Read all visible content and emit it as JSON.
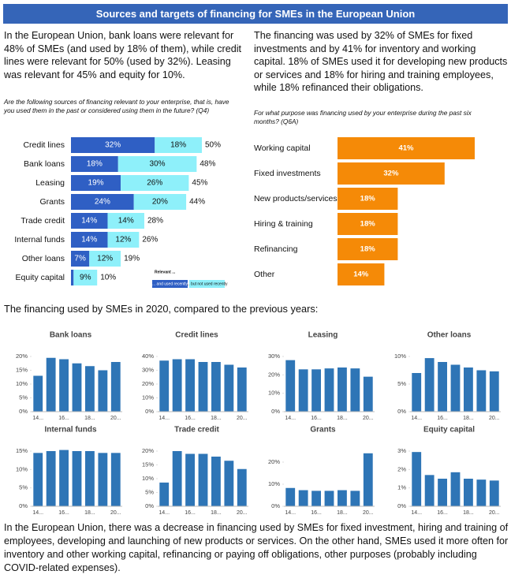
{
  "title": "Sources and targets of financing for SMEs in the European Union",
  "intro_left": "In the European Union, bank loans were relevant for 48% of SMEs (and used by 18% of them), while credit lines were relevant for 50% (used by 32%). Leasing was relevant for 45% and equity for 10%.",
  "intro_right": "The financing was used by 32% of SMEs for fixed investments and by 41% for inventory and working capital. 18% of SMEs used it for developing new products or services and 18% for hiring and training employees, while 18% refinanced their obligations.",
  "section_heading": "The financing used by SMEs in 2020, compared to the previous years:",
  "conclusion": "In the European Union, there was a decrease in financing used by SMEs for fixed investment, hiring and training of employees, developing and launching of new products or services. On the other hand, SMEs used it more often for inventory and other working capital, refinancing or paying off obligations, other purposes (probably including COVID-related expenses).",
  "chart_data": [
    {
      "type": "stacked_bar_h",
      "subtitle": "Are the following sources of financing relevant to your enterprise, that is, have you used them in the past or considered using them in the future? (Q4)",
      "categories": [
        "Credit lines",
        "Bank loans",
        "Leasing",
        "Grants",
        "Trade credit",
        "Internal funds",
        "Other loans",
        "Equity capital"
      ],
      "legend_title": "Relevant ...",
      "series": [
        {
          "name": "... and used recently",
          "color": "#2f5fc4",
          "values": [
            32,
            18,
            19,
            24,
            14,
            14,
            7,
            1
          ],
          "value_labels": [
            "32%",
            "18%",
            "19%",
            "24%",
            "14%",
            "14%",
            "7%",
            null
          ]
        },
        {
          "name": "... but not used recently",
          "color": "#8ef0fa",
          "values": [
            18,
            30,
            26,
            20,
            14,
            12,
            12,
            9
          ],
          "value_labels": [
            "18%",
            "30%",
            "26%",
            "20%",
            "14%",
            "12%",
            "12%",
            "9%"
          ]
        }
      ],
      "total_labels": [
        "50%",
        "48%",
        "45%",
        "44%",
        "28%",
        "26%",
        "19%",
        "10%"
      ]
    },
    {
      "type": "bar_h",
      "subtitle": "For what purpose was financing used by your enterprise during the past six months? (Q6A)",
      "categories": [
        "Working capital",
        "Fixed investments",
        "New products/services",
        "Hiring & training",
        "Refinancing",
        "Other"
      ],
      "values": [
        41,
        32,
        18,
        18,
        18,
        14
      ],
      "value_labels": [
        "41%",
        "32%",
        "18%",
        "18%",
        "18%",
        "14%"
      ],
      "color": "#f58a07"
    },
    {
      "type": "bar",
      "title": "Bank loans",
      "categories": [
        "14...",
        null,
        "16...",
        null,
        "18...",
        null,
        "20..."
      ],
      "values": [
        13,
        19.5,
        19,
        17.5,
        16.5,
        15,
        18
      ],
      "color": "#2e75b6",
      "ylim": [
        0,
        20
      ],
      "yticks": [
        {
          "value": 0,
          "label": "0%"
        },
        {
          "value": 5,
          "label": "5%"
        },
        {
          "value": 10,
          "label": "10%"
        },
        {
          "value": 15,
          "label": "15%"
        },
        {
          "value": 20,
          "label": "20%"
        }
      ]
    },
    {
      "type": "bar",
      "title": "Credit lines",
      "categories": [
        "14...",
        null,
        "16...",
        null,
        "18...",
        null,
        "20..."
      ],
      "values": [
        37,
        38,
        38,
        36,
        36,
        34,
        32
      ],
      "color": "#2e75b6",
      "ylim": [
        0,
        40
      ],
      "yticks": [
        {
          "value": 0,
          "label": "0%"
        },
        {
          "value": 10,
          "label": "10%"
        },
        {
          "value": 20,
          "label": "20%"
        },
        {
          "value": 30,
          "label": "30%"
        },
        {
          "value": 40,
          "label": "40%"
        }
      ]
    },
    {
      "type": "bar",
      "title": "Leasing",
      "categories": [
        "14...",
        null,
        "16...",
        null,
        "18...",
        null,
        "20..."
      ],
      "values": [
        28,
        23,
        23,
        23.5,
        24,
        23.5,
        19
      ],
      "color": "#2e75b6",
      "ylim": [
        0,
        30
      ],
      "yticks": [
        {
          "value": 0,
          "label": "0%"
        },
        {
          "value": 10,
          "label": "10%"
        },
        {
          "value": 20,
          "label": "20%"
        },
        {
          "value": 30,
          "label": "30%"
        }
      ]
    },
    {
      "type": "bar",
      "title": "Other loans",
      "categories": [
        "14...",
        null,
        "16...",
        null,
        "18...",
        null,
        "20..."
      ],
      "values": [
        7,
        9.7,
        9,
        8.5,
        8,
        7.5,
        7.3
      ],
      "color": "#2e75b6",
      "ylim": [
        0,
        10
      ],
      "yticks": [
        {
          "value": 0,
          "label": "0%"
        },
        {
          "value": 5,
          "label": "5%"
        },
        {
          "value": 10,
          "label": "10%"
        }
      ]
    },
    {
      "type": "bar",
      "title": "Internal funds",
      "categories": [
        "14...",
        null,
        "16...",
        null,
        "18...",
        null,
        "20..."
      ],
      "values": [
        14.5,
        15,
        15.3,
        15,
        15,
        14.5,
        14.5
      ],
      "color": "#2e75b6",
      "ylim": [
        0,
        15
      ],
      "yticks": [
        {
          "value": 0,
          "label": "0%"
        },
        {
          "value": 5,
          "label": "5%"
        },
        {
          "value": 10,
          "label": "10%"
        },
        {
          "value": 15,
          "label": "15%"
        }
      ]
    },
    {
      "type": "bar",
      "title": "Trade credit",
      "categories": [
        "14...",
        null,
        "16...",
        null,
        "18...",
        null,
        "20..."
      ],
      "values": [
        8.6,
        20,
        19,
        19,
        18,
        16.5,
        13.5
      ],
      "color": "#2e75b6",
      "ylim": [
        0,
        20
      ],
      "yticks": [
        {
          "value": 0,
          "label": "0%"
        },
        {
          "value": 5,
          "label": "5%"
        },
        {
          "value": 10,
          "label": "10%"
        },
        {
          "value": 15,
          "label": "15%"
        },
        {
          "value": 20,
          "label": "20%"
        }
      ]
    },
    {
      "type": "bar",
      "title": "Grants",
      "categories": [
        "14...",
        null,
        "16...",
        null,
        "18...",
        null,
        "20..."
      ],
      "values": [
        8.3,
        7.3,
        7,
        7,
        7.3,
        7,
        24
      ],
      "color": "#2e75b6",
      "ylim": [
        0,
        25
      ],
      "yticks": [
        {
          "value": 0,
          "label": "0%"
        },
        {
          "value": 10,
          "label": "10%"
        },
        {
          "value": 20,
          "label": "20%"
        }
      ]
    },
    {
      "type": "bar",
      "title": "Equity capital",
      "categories": [
        "14...",
        null,
        "16...",
        null,
        "18...",
        null,
        "20..."
      ],
      "values": [
        2.95,
        1.7,
        1.5,
        1.85,
        1.5,
        1.45,
        1.4
      ],
      "color": "#2e75b6",
      "ylim": [
        0,
        3
      ],
      "yticks": [
        {
          "value": 0,
          "label": "0%"
        },
        {
          "value": 1,
          "label": "1%"
        },
        {
          "value": 2,
          "label": "2%"
        },
        {
          "value": 3,
          "label": "3%"
        }
      ]
    }
  ]
}
